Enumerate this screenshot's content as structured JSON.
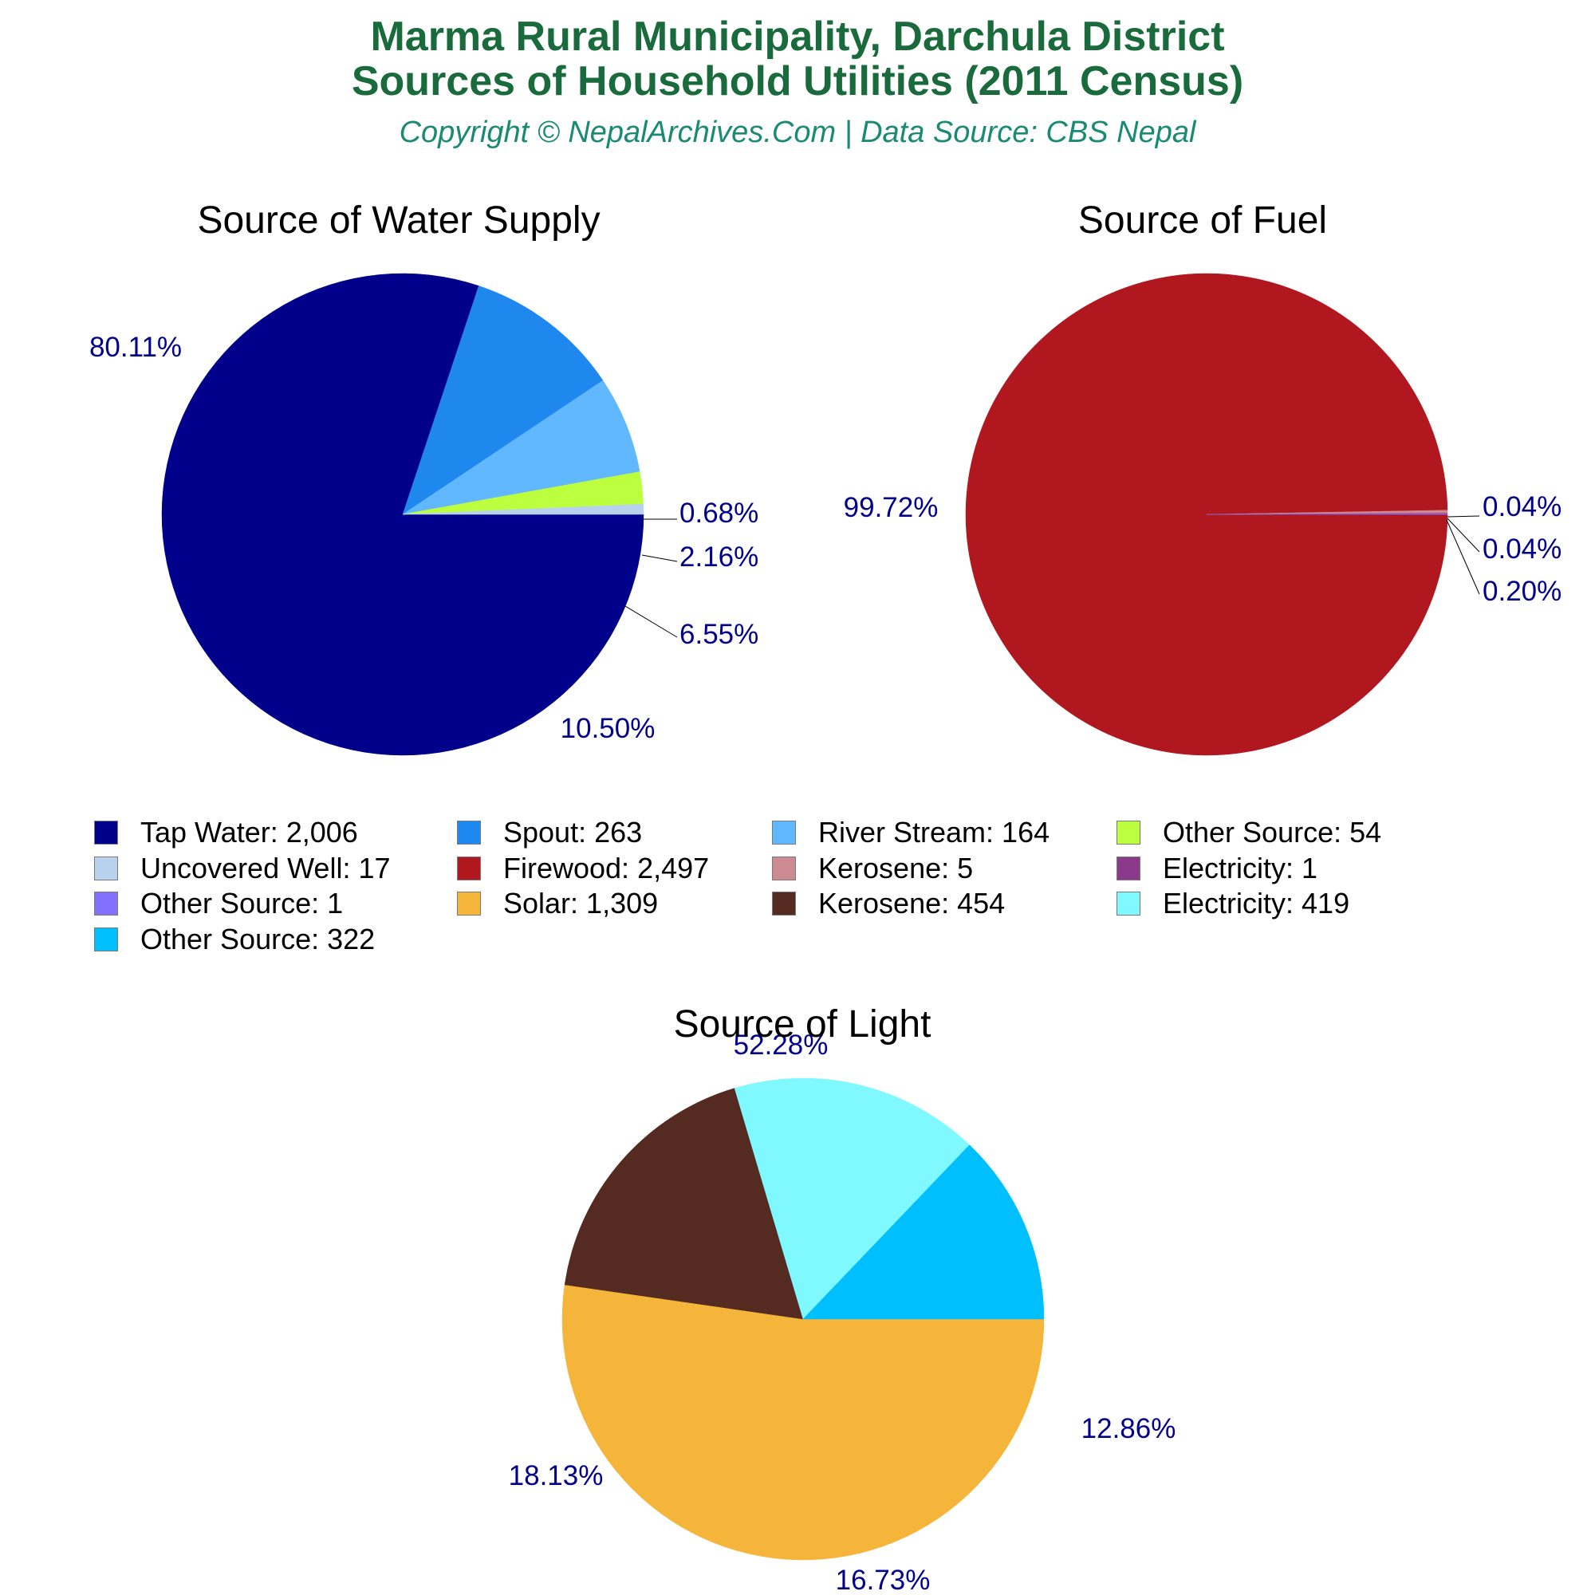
{
  "header": {
    "title_line1": "Marma Rural Municipality, Darchula District",
    "title_line2": "Sources of Household Utilities (2011 Census)",
    "subtitle": "Copyright © NepalArchives.Com | Data Source: CBS Nepal"
  },
  "chart_data": [
    {
      "type": "pie",
      "title": "Source of Water Supply",
      "slices": [
        {
          "name": "Tap Water",
          "value": 2006,
          "display": "2,006",
          "percent_label": "80.11%",
          "color": "#00008b"
        },
        {
          "name": "Spout",
          "value": 263,
          "display": "263",
          "percent_label": "10.50%",
          "color": "#1e88ee"
        },
        {
          "name": "River Stream",
          "value": 164,
          "display": "164",
          "percent_label": "6.55%",
          "color": "#62b8ff"
        },
        {
          "name": "Other Source",
          "value": 54,
          "display": "54",
          "percent_label": "2.16%",
          "color": "#bbff3e"
        },
        {
          "name": "Uncovered Well",
          "value": 17,
          "display": "17",
          "percent_label": "0.68%",
          "color": "#b8d2ee"
        }
      ]
    },
    {
      "type": "pie",
      "title": "Source of Fuel",
      "slices": [
        {
          "name": "Firewood",
          "value": 2497,
          "display": "2,497",
          "percent_label": "99.72%",
          "color": "#b0171f"
        },
        {
          "name": "Kerosene",
          "value": 5,
          "display": "5",
          "percent_label": "0.20%",
          "color": "#cc8a93"
        },
        {
          "name": "Electricity",
          "value": 1,
          "display": "1",
          "percent_label": "0.04%",
          "color": "#8b3a8b"
        },
        {
          "name": "Other Source",
          "value": 1,
          "display": "1",
          "percent_label": "0.04%",
          "color": "#8470ff"
        }
      ]
    },
    {
      "type": "pie",
      "title": "Source of Light",
      "slices": [
        {
          "name": "Solar",
          "value": 1309,
          "display": "1,309",
          "percent_label": "52.28%",
          "color": "#f5b43a"
        },
        {
          "name": "Kerosene",
          "value": 454,
          "display": "454",
          "percent_label": "18.13%",
          "color": "#552a20"
        },
        {
          "name": "Electricity",
          "value": 419,
          "display": "419",
          "percent_label": "16.73%",
          "color": "#7ff9ff"
        },
        {
          "name": "Other Source",
          "value": 322,
          "display": "322",
          "percent_label": "12.86%",
          "color": "#00bfff"
        }
      ]
    }
  ],
  "legend": {
    "items": [
      {
        "label": "Tap Water: 2,006",
        "color": "#00008b"
      },
      {
        "label": "Spout: 263",
        "color": "#1e88ee"
      },
      {
        "label": "River Stream: 164",
        "color": "#62b8ff"
      },
      {
        "label": "Other Source: 54",
        "color": "#bbff3e"
      },
      {
        "label": "Uncovered Well: 17",
        "color": "#b8d2ee"
      },
      {
        "label": "Firewood: 2,497",
        "color": "#b0171f"
      },
      {
        "label": "Kerosene: 5",
        "color": "#cc8a93"
      },
      {
        "label": "Electricity: 1",
        "color": "#8b3a8b"
      },
      {
        "label": "Other Source: 1",
        "color": "#8470ff"
      },
      {
        "label": "Solar: 1,309",
        "color": "#f5b43a"
      },
      {
        "label": "Kerosene: 454",
        "color": "#552a20"
      },
      {
        "label": "Electricity: 419",
        "color": "#7ff9ff"
      },
      {
        "label": "Other Source: 322",
        "color": "#00bfff"
      }
    ]
  }
}
